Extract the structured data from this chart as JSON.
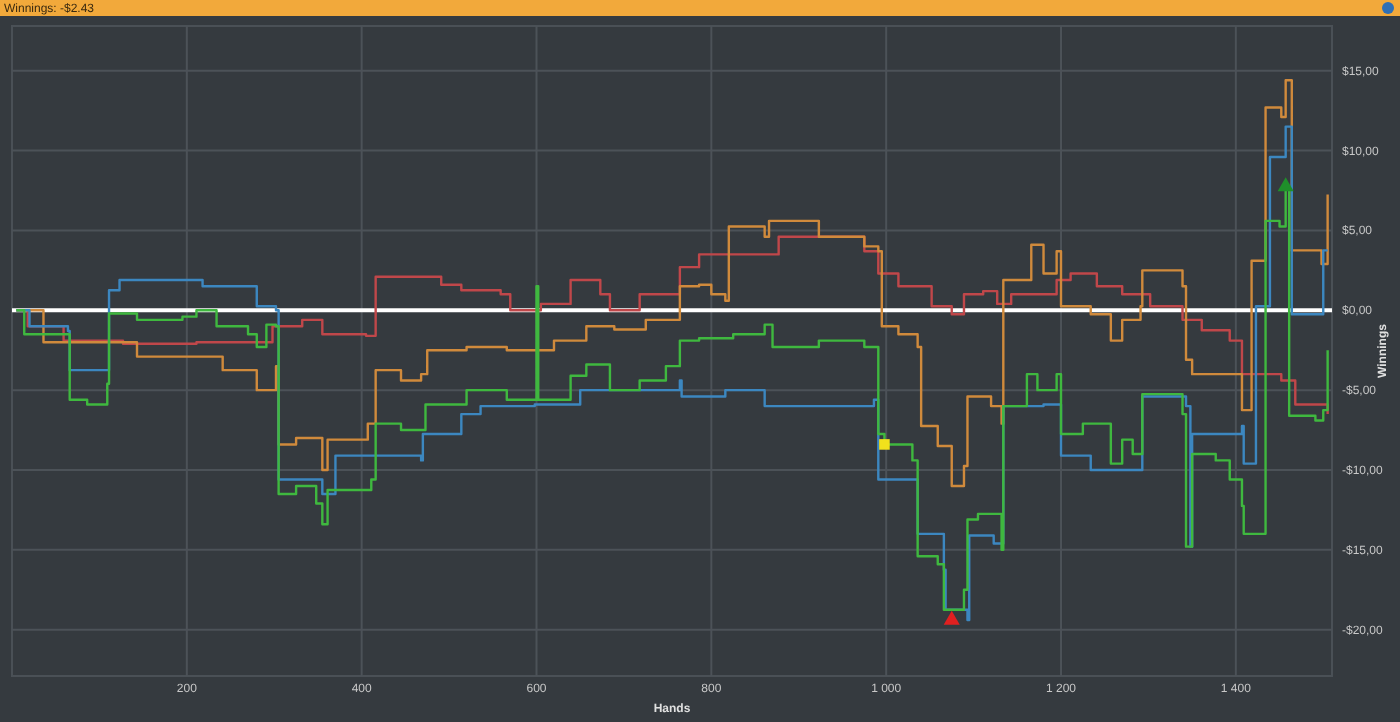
{
  "chart_data": {
    "type": "step",
    "title": "Winnings: -$2.43",
    "xlabel": "Hands",
    "ylabel": "Winnings",
    "xlim": [
      0,
      1510
    ],
    "xticks": [
      200,
      400,
      600,
      800,
      {
        "value": 1000,
        "label": "1 000"
      },
      {
        "value": 1200,
        "label": "1 200"
      },
      {
        "value": 1400,
        "label": "1 400"
      }
    ],
    "ylim": [
      -22.9,
      17.8
    ],
    "yticks": [
      {
        "value": -20,
        "label": "-$20,00"
      },
      {
        "value": -15,
        "label": "-$15,00"
      },
      {
        "value": -10,
        "label": "-$10,00"
      },
      {
        "value": -5,
        "label": "-$5,00"
      },
      {
        "value": 0,
        "label": "$0,00"
      },
      {
        "value": 5,
        "label": "$5,00"
      },
      {
        "value": 10,
        "label": "$10,00"
      },
      {
        "value": 15,
        "label": "$15,00"
      }
    ],
    "grid": true,
    "line_style": "solid",
    "ref_lines": [
      {
        "axis": "y",
        "value": 0,
        "color": "#ffffff"
      }
    ],
    "series": [
      {
        "color": "#c0474a",
        "x": [
          5,
          18,
          59,
          127,
          211,
          298,
          332,
          355,
          405,
          416,
          491,
          514,
          559,
          570,
          605,
          639,
          673,
          684,
          718,
          764,
          786,
          877,
          916,
          975,
          991,
          1014,
          1052,
          1075,
          1089,
          1111,
          1127,
          1143,
          1195,
          1211,
          1241,
          1270,
          1302,
          1339,
          1361,
          1393,
          1407,
          1452,
          1468,
          1505
        ],
        "values": [
          0,
          -1,
          -1.9,
          -2.1,
          -2,
          -1,
          -0.6,
          -1.5,
          -1.6,
          2.1,
          1.6,
          1.25,
          1,
          0,
          0.4,
          1.9,
          1,
          0,
          1,
          2.7,
          3.5,
          4.6,
          4.6,
          3.7,
          2.3,
          1.5,
          0.25,
          -0.25,
          1,
          1.2,
          0.4,
          1,
          1.9,
          2.3,
          1.5,
          1,
          0.25,
          -0.6,
          -1.25,
          -1.9,
          -4,
          -4.4,
          -5.9,
          -6.5
        ]
      },
      {
        "color": "#d08a3c",
        "x": [
          5,
          36,
          143,
          241,
          280,
          302,
          305,
          325,
          355,
          361,
          407,
          416,
          445,
          468,
          475,
          520,
          566,
          620,
          657,
          689,
          725,
          764,
          786,
          800,
          816,
          820,
          861,
          866,
          923,
          975,
          991,
          995,
          1014,
          1036,
          1040,
          1059,
          1075,
          1089,
          1093,
          1120,
          1132,
          1134,
          1166,
          1180,
          1195,
          1200,
          1234,
          1257,
          1270,
          1291,
          1293,
          1339,
          1343,
          1350,
          1407,
          1418,
          1434,
          1452,
          1457,
          1464,
          1498,
          1505
        ],
        "values": [
          0,
          -2,
          -2.9,
          -3.75,
          -5,
          -3.5,
          -8.4,
          -8,
          -10,
          -8.1,
          -7.1,
          -3.75,
          -4.4,
          -4,
          -2.5,
          -2.3,
          -2.5,
          -1.9,
          -1,
          -1.2,
          -0.6,
          1.5,
          1.6,
          1,
          0.6,
          5.25,
          4.6,
          5.6,
          4.6,
          4,
          3.7,
          -1,
          -1.5,
          -2.3,
          -7.25,
          -8.5,
          -11,
          -9.75,
          -5.4,
          -6,
          -7.1,
          1.9,
          4.1,
          2.3,
          3.7,
          0.25,
          -0.25,
          -1.9,
          -0.6,
          0.25,
          2.5,
          1.5,
          -3.1,
          -4,
          -6.25,
          3.1,
          12.7,
          12.1,
          14.4,
          3.75,
          2.9,
          7.25
        ]
      },
      {
        "color": "#3c87c0",
        "x": [
          5,
          20,
          64,
          66,
          105,
          111,
          123,
          218,
          248,
          280,
          302,
          305,
          339,
          355,
          370,
          468,
          470,
          514,
          536,
          598,
          650,
          764,
          766,
          816,
          861,
          975,
          986,
          991,
          1030,
          1036,
          1066,
          1068,
          1093,
          1095,
          1123,
          1134,
          1180,
          1200,
          1234,
          1277,
          1293,
          1343,
          1348,
          1350,
          1407,
          1409,
          1423,
          1439,
          1457,
          1464,
          1500,
          1505
        ],
        "values": [
          0,
          -1,
          -1.3,
          -3.75,
          -3.75,
          1.25,
          1.9,
          1.5,
          1.5,
          0.25,
          0,
          -10.6,
          -10.6,
          -11.5,
          -9.1,
          -9.4,
          -7.75,
          -6.5,
          -6,
          -5.9,
          -5,
          -4.4,
          -5.4,
          -5,
          -6,
          -6,
          -5.6,
          -10.6,
          -10.6,
          -14,
          -16.25,
          -18.75,
          -19.4,
          -14.1,
          -14.6,
          -6,
          -5.9,
          -9.1,
          -10,
          -10,
          -5.4,
          -6,
          -14.8,
          -7.75,
          -7.25,
          -9.6,
          0.25,
          9.6,
          11.5,
          -0.25,
          3.75,
          3.75
        ]
      },
      {
        "color": "#3fb83f",
        "x": [
          5,
          14,
          66,
          86,
          109,
          111,
          143,
          195,
          211,
          234,
          270,
          280,
          291,
          302,
          305,
          325,
          348,
          355,
          361,
          411,
          416,
          445,
          473,
          509,
          520,
          552,
          566,
          598,
          600,
          602,
          639,
          657,
          684,
          718,
          748,
          764,
          786,
          825,
          861,
          870,
          923,
          975,
          991,
          998,
          1030,
          1036,
          1059,
          1066,
          1086,
          1089,
          1093,
          1105,
          1132,
          1134,
          1161,
          1173,
          1195,
          1200,
          1225,
          1257,
          1270,
          1282,
          1293,
          1339,
          1343,
          1350,
          1377,
          1393,
          1407,
          1409,
          1423,
          1434,
          1450,
          1457,
          1461,
          1491,
          1500,
          1505
        ],
        "values": [
          0,
          -1.5,
          -5.6,
          -5.9,
          -4.6,
          -0.2,
          -0.6,
          -0.4,
          0,
          -1,
          -1.5,
          -2.3,
          -0.9,
          -1,
          -11.5,
          -11,
          -12.1,
          -13.4,
          -11.25,
          -10.6,
          -7.1,
          -7.5,
          -5.9,
          -5.9,
          -5,
          -5,
          -5.6,
          -5.6,
          1.5,
          -5.6,
          -4.1,
          -3.4,
          -5,
          -4.4,
          -3.5,
          -1.9,
          -1.75,
          -1.5,
          -0.9,
          -2.3,
          -1.9,
          -2.3,
          -7.75,
          -8.4,
          -9.4,
          -15.4,
          -15.9,
          -18.75,
          -18.75,
          -17.5,
          -13.1,
          -12.75,
          -15,
          -6,
          -4,
          -5,
          -4,
          -7.75,
          -7.1,
          -9.6,
          -8.1,
          -9,
          -5.25,
          -6.5,
          -14.8,
          -9,
          -9.4,
          -10.6,
          -12.25,
          -14,
          -14,
          5.6,
          5.25,
          7.75,
          -6.6,
          -6.9,
          -6.25,
          -2.5
        ]
      },
      {
        "type": "scatter",
        "marker": "square",
        "color": "#f2e11c",
        "x": [
          998
        ],
        "values": [
          -8.4
        ]
      },
      {
        "type": "scatter",
        "marker": "triangle",
        "color": "#e02020",
        "x": [
          1075
        ],
        "values": [
          -19.4
        ]
      },
      {
        "type": "scatter",
        "marker": "triangle",
        "color": "#1f8f2a",
        "x": [
          1457
        ],
        "values": [
          7.75
        ]
      }
    ]
  }
}
